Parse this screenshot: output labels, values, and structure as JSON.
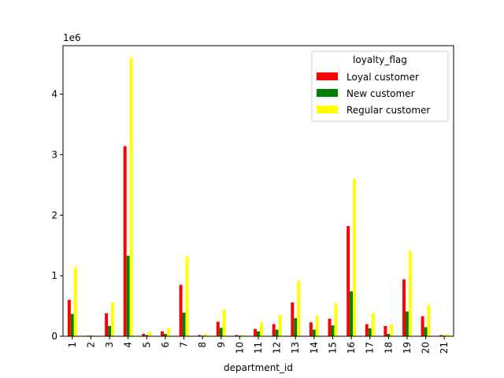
{
  "chart_data": {
    "type": "bar",
    "xlabel": "department_id",
    "ylabel": "",
    "offset_label": "1e6",
    "ylim": [
      0,
      4800000
    ],
    "yticks": [
      0,
      1000000,
      2000000,
      3000000,
      4000000
    ],
    "ytick_labels": [
      "0",
      "1",
      "2",
      "3",
      "4"
    ],
    "categories": [
      "1",
      "2",
      "3",
      "4",
      "5",
      "6",
      "7",
      "8",
      "9",
      "10",
      "11",
      "12",
      "13",
      "14",
      "15",
      "16",
      "17",
      "18",
      "19",
      "20",
      "21"
    ],
    "legend": {
      "title": "loyalty_flag",
      "placement": "upper right"
    },
    "series": [
      {
        "name": "Loyal customer",
        "color": "#ff0000",
        "values": [
          600000,
          10000,
          380000,
          3140000,
          40000,
          80000,
          850000,
          20000,
          240000,
          20000,
          120000,
          200000,
          560000,
          230000,
          290000,
          1820000,
          200000,
          170000,
          940000,
          330000,
          20000
        ]
      },
      {
        "name": "New customer",
        "color": "#008000",
        "values": [
          370000,
          10000,
          170000,
          1330000,
          20000,
          40000,
          390000,
          10000,
          140000,
          10000,
          80000,
          110000,
          300000,
          110000,
          180000,
          740000,
          130000,
          40000,
          410000,
          150000,
          10000
        ]
      },
      {
        "name": "Regular customer",
        "color": "#ffff00",
        "values": [
          1140000,
          15000,
          560000,
          4600000,
          70000,
          140000,
          1320000,
          40000,
          440000,
          25000,
          230000,
          350000,
          920000,
          340000,
          540000,
          2600000,
          380000,
          200000,
          1410000,
          520000,
          35000
        ]
      }
    ]
  }
}
